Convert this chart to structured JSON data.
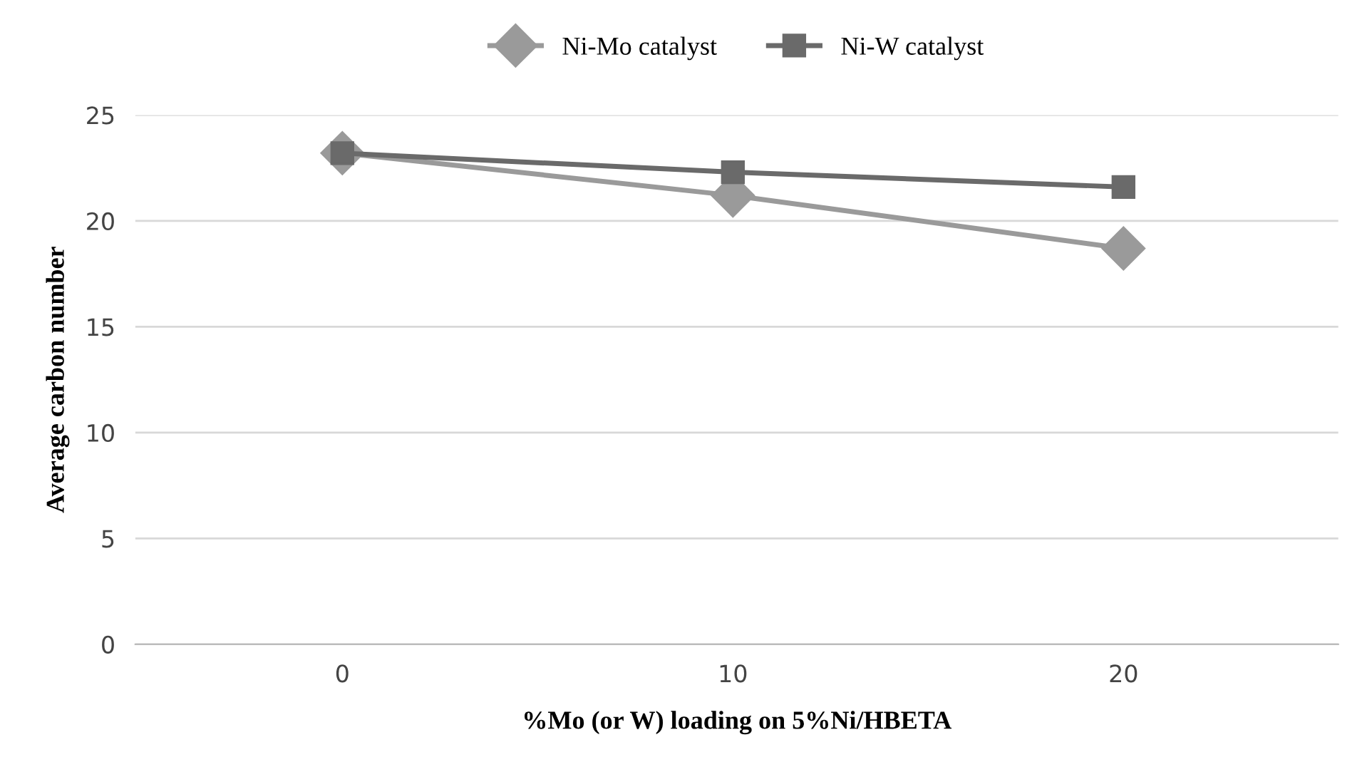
{
  "chart_data": {
    "type": "line",
    "xlabel": "%Mo (or W) loading on 5%Ni/HBETA",
    "ylabel": "Average carbon number",
    "x": [
      0,
      10,
      20
    ],
    "series": [
      {
        "name": "Ni-Mo catalyst",
        "color": "#9a9a9a",
        "marker": "diamond",
        "values": [
          23.2,
          21.2,
          18.7
        ]
      },
      {
        "name": "Ni-W catalyst",
        "color": "#6a6a6a",
        "marker": "square",
        "values": [
          23.2,
          22.3,
          21.6
        ]
      }
    ],
    "xlim": [
      -5.3,
      25.5
    ],
    "xticks": [
      0,
      10,
      20
    ],
    "ylim": [
      0,
      25
    ],
    "yticks": [
      0,
      5,
      10,
      15,
      20,
      25
    ],
    "grid": "y",
    "legend": "top"
  }
}
